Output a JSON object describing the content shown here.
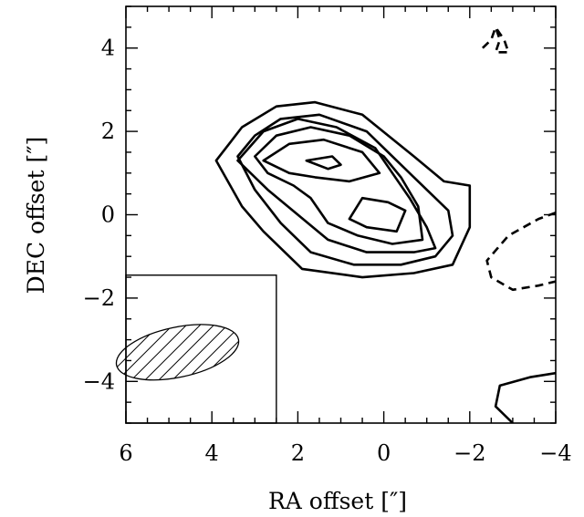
{
  "chart_data": {
    "type": "contour",
    "title": "",
    "xlabel": "RA offset [″]",
    "ylabel": "DEC offset [″]",
    "xlim": [
      6,
      -4
    ],
    "ylim": [
      -5,
      5
    ],
    "xticks": [
      6,
      4,
      2,
      0,
      -2,
      -4
    ],
    "yticks": [
      -4,
      -2,
      0,
      2,
      4
    ],
    "xtick_labels": [
      "6",
      "4",
      "2",
      "0",
      "−2",
      "−4"
    ],
    "ytick_labels": [
      "−4",
      "−2",
      "0",
      "2",
      "4"
    ],
    "minor_tick_step": 0.5,
    "grid": false,
    "contours": [
      {
        "style": "solid",
        "closed": true,
        "points": [
          [
            3.9,
            1.3
          ],
          [
            3.3,
            2.1
          ],
          [
            2.5,
            2.6
          ],
          [
            1.6,
            2.7
          ],
          [
            0.5,
            2.4
          ],
          [
            -0.7,
            1.4
          ],
          [
            -1.4,
            0.8
          ],
          [
            -2.0,
            0.7
          ],
          [
            -2.0,
            -0.3
          ],
          [
            -1.6,
            -1.2
          ],
          [
            -0.7,
            -1.4
          ],
          [
            0.5,
            -1.5
          ],
          [
            1.9,
            -1.3
          ],
          [
            2.8,
            -0.4
          ],
          [
            3.3,
            0.2
          ]
        ]
      },
      {
        "style": "solid",
        "closed": true,
        "points": [
          [
            3.4,
            1.4
          ],
          [
            3.0,
            1.9
          ],
          [
            2.4,
            2.3
          ],
          [
            1.5,
            2.4
          ],
          [
            0.4,
            2.0
          ],
          [
            -0.7,
            0.9
          ],
          [
            -1.5,
            0.1
          ],
          [
            -1.6,
            -0.5
          ],
          [
            -1.2,
            -1.0
          ],
          [
            -0.4,
            -1.2
          ],
          [
            0.7,
            -1.2
          ],
          [
            1.7,
            -0.9
          ],
          [
            2.4,
            -0.2
          ],
          [
            3.0,
            0.6
          ]
        ]
      },
      {
        "style": "solid",
        "closed": true,
        "points": [
          [
            3.4,
            1.3
          ],
          [
            2.8,
            2.0
          ],
          [
            2.0,
            2.3
          ],
          [
            1.1,
            2.1
          ],
          [
            0.2,
            1.6
          ],
          [
            -0.2,
            1.0
          ],
          [
            -0.6,
            0.4
          ],
          [
            -1.0,
            -0.3
          ],
          [
            -1.2,
            -0.8
          ],
          [
            -0.7,
            -0.9
          ],
          [
            0.4,
            -0.9
          ],
          [
            1.3,
            -0.6
          ],
          [
            2.0,
            0.0
          ],
          [
            2.7,
            0.6
          ]
        ]
      },
      {
        "style": "solid",
        "closed": true,
        "points": [
          [
            3.0,
            1.4
          ],
          [
            2.5,
            1.9
          ],
          [
            1.7,
            2.1
          ],
          [
            0.8,
            1.9
          ],
          [
            0.0,
            1.4
          ],
          [
            -0.4,
            0.9
          ],
          [
            -0.8,
            0.2
          ],
          [
            -0.9,
            -0.6
          ],
          [
            -0.2,
            -0.7
          ],
          [
            0.6,
            -0.5
          ],
          [
            1.3,
            -0.2
          ],
          [
            1.7,
            0.4
          ],
          [
            2.1,
            0.7
          ],
          [
            2.7,
            1.0
          ]
        ]
      },
      {
        "style": "solid",
        "closed": true,
        "points": [
          [
            2.8,
            1.3
          ],
          [
            2.2,
            1.7
          ],
          [
            1.4,
            1.8
          ],
          [
            0.5,
            1.5
          ],
          [
            0.1,
            1.0
          ],
          [
            0.8,
            0.8
          ],
          [
            1.6,
            0.9
          ],
          [
            2.2,
            1.0
          ]
        ]
      },
      {
        "style": "solid",
        "closed": true,
        "points": [
          [
            1.8,
            1.3
          ],
          [
            1.2,
            1.4
          ],
          [
            1.0,
            1.2
          ],
          [
            1.3,
            1.1
          ]
        ]
      },
      {
        "style": "solid",
        "closed": true,
        "points": [
          [
            0.8,
            -0.1
          ],
          [
            0.5,
            0.4
          ],
          [
            -0.1,
            0.3
          ],
          [
            -0.5,
            0.1
          ],
          [
            -0.3,
            -0.4
          ],
          [
            0.4,
            -0.3
          ]
        ]
      },
      {
        "style": "dashed",
        "closed": false,
        "points": [
          [
            -2.3,
            4.0
          ],
          [
            -2.5,
            4.2
          ],
          [
            -2.6,
            4.5
          ],
          [
            -2.7,
            4.2
          ],
          [
            -2.6,
            3.9
          ],
          [
            -2.9,
            3.9
          ],
          [
            -2.8,
            4.2
          ],
          [
            -2.6,
            4.5
          ]
        ]
      },
      {
        "style": "dashed",
        "closed": false,
        "points": [
          [
            -4.0,
            0.05
          ],
          [
            -3.6,
            -0.1
          ],
          [
            -2.9,
            -0.5
          ],
          [
            -2.4,
            -1.1
          ],
          [
            -2.5,
            -1.5
          ],
          [
            -3.0,
            -1.8
          ],
          [
            -3.6,
            -1.7
          ],
          [
            -4.0,
            -1.6
          ]
        ]
      },
      {
        "style": "solid",
        "closed": false,
        "points": [
          [
            -4.0,
            -3.8
          ],
          [
            -3.4,
            -3.9
          ],
          [
            -2.7,
            -4.1
          ],
          [
            -2.6,
            -4.6
          ],
          [
            -3.0,
            -5.0
          ]
        ]
      }
    ],
    "beam": {
      "center": [
        4.8,
        -3.3
      ],
      "major": 2.9,
      "minor": 1.2,
      "angle_deg": 12,
      "hatch": "diagonal"
    },
    "inset_box": {
      "x": [
        6,
        2.5
      ],
      "y": [
        -5,
        -1.45
      ]
    }
  }
}
